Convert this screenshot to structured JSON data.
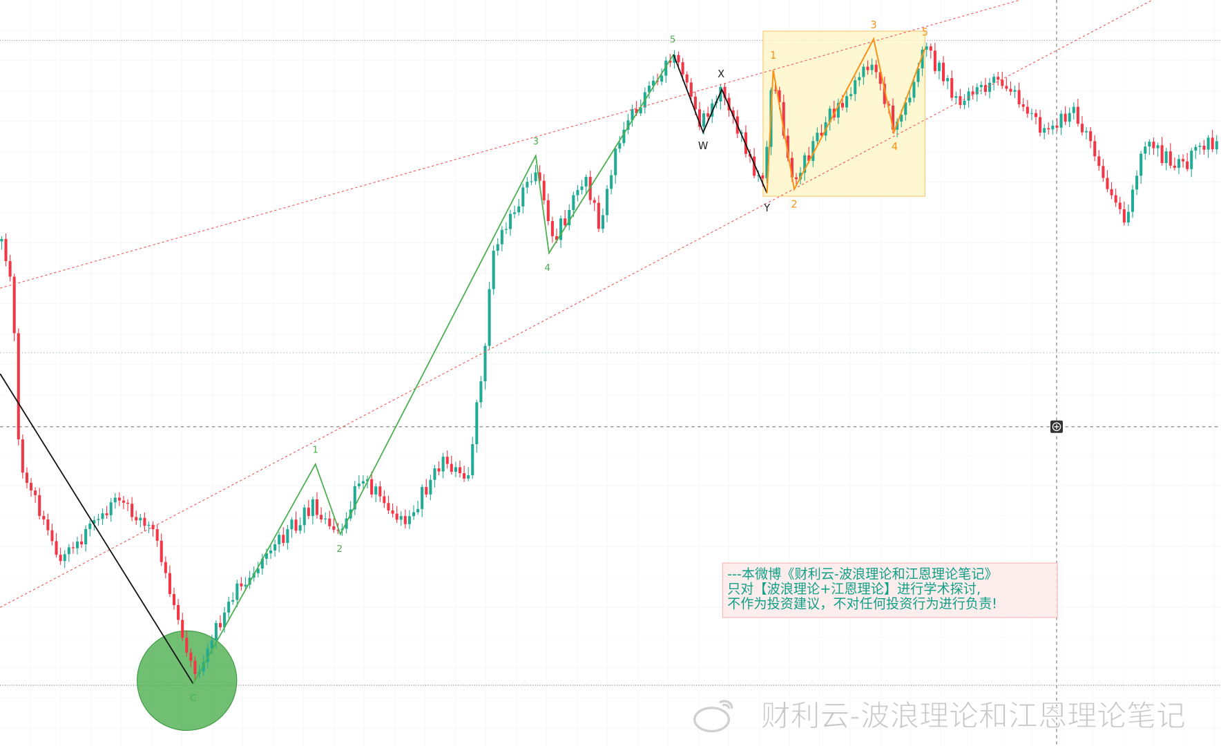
{
  "green_wave": {
    "labels": [
      "C",
      "1",
      "2",
      "3",
      "4",
      "5"
    ]
  },
  "correction": {
    "labels": [
      "W",
      "X",
      "Y"
    ]
  },
  "orange_wave": {
    "labels": [
      "1",
      "2",
      "3",
      "4",
      "5"
    ]
  },
  "disclaimer": {
    "lines": [
      "---本微博《财利云-波浪理论和江恩理论笔记》",
      "只对【波浪理论+江恩理论】进行学术探讨,",
      "不作为投资建议，不对任何投资行为进行负责!"
    ]
  },
  "watermark": "财利云-波浪理论和江恩理论笔记"
}
